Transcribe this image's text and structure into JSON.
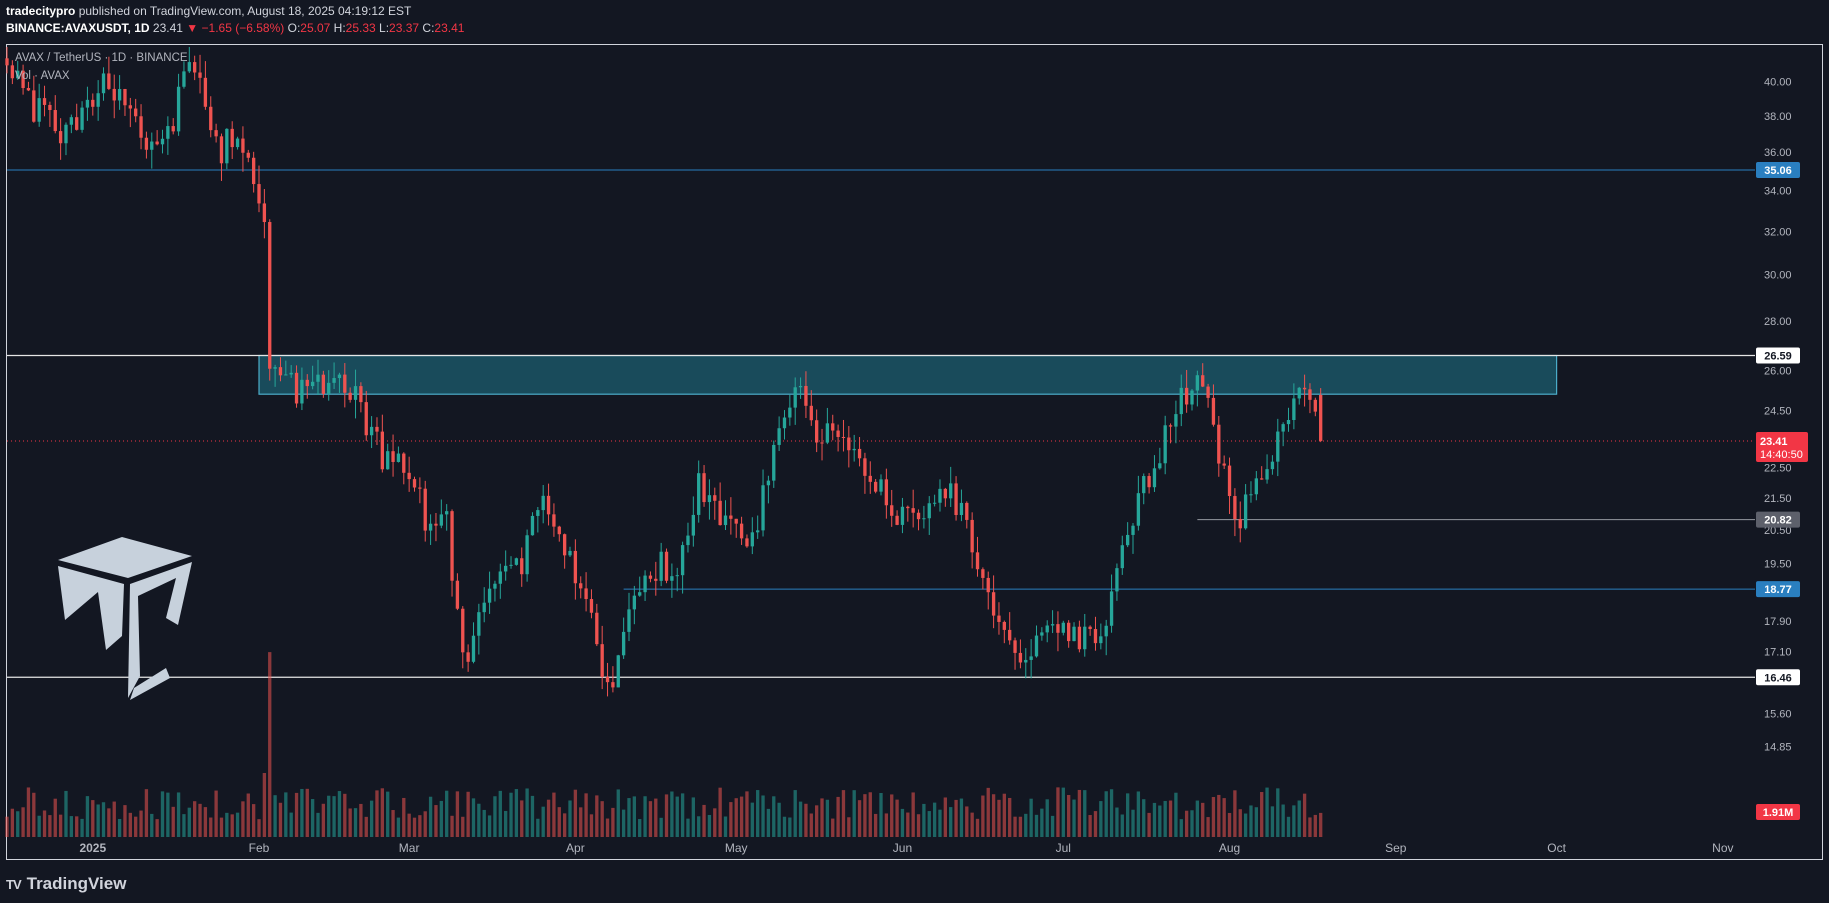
{
  "header": {
    "author": "tradecitypro",
    "published_text": "published on TradingView.com, August 18, 2025 04:19:12 EST",
    "symbol": "BINANCE:AVAXUSDT, 1D",
    "last": "23.41",
    "change": "−1.65 (−6.58%)",
    "o_label": "O:",
    "o_val": "25.07",
    "h_label": "H:",
    "h_val": "25.33",
    "l_label": "L:",
    "l_val": "23.37",
    "c_label": "C:",
    "c_val": "23.41"
  },
  "legend": {
    "series_title": "AVAX / TetherUS · 1D · BINANCE",
    "volume_title": "Vol · AVAX"
  },
  "footer": {
    "brand": "TradingView",
    "logo_mark": "TV"
  },
  "colors": {
    "background": "#131722",
    "bull": "#26a69a",
    "bear": "#ef5350",
    "level_line": "#2a7fc0",
    "zone_fill": "#1a4e5f",
    "zone_stroke": "#4fb6d3",
    "current_price": "#f23645"
  },
  "chart_data": {
    "type": "candlestick",
    "symbol": "AVAX / TetherUS",
    "timeframe": "1D",
    "exchange": "BINANCE",
    "y_scale": "log",
    "ylim": [
      14.55,
      41.0
    ],
    "y_ticks": [
      40.0,
      38.0,
      36.0,
      34.0,
      32.0,
      30.0,
      28.0,
      26.0,
      24.5,
      22.5,
      21.5,
      20.5,
      19.5,
      17.9,
      17.1,
      15.6,
      14.85
    ],
    "y_tick_labels": [
      "40.00",
      "38.00",
      "36.00",
      "34.00",
      "32.00",
      "30.00",
      "28.00",
      "26.00",
      "24.50",
      "22.50",
      "21.50",
      "20.50",
      "19.50",
      "17.90",
      "17.10",
      "15.60",
      "14.85"
    ],
    "x_ticks": [
      {
        "label": "2025",
        "date": "2025-01-01"
      },
      {
        "label": "Feb",
        "date": "2025-02-01"
      },
      {
        "label": "Mar",
        "date": "2025-03-01"
      },
      {
        "label": "Apr",
        "date": "2025-04-01"
      },
      {
        "label": "May",
        "date": "2025-05-01"
      },
      {
        "label": "Jun",
        "date": "2025-06-01"
      },
      {
        "label": "Jul",
        "date": "2025-07-01"
      },
      {
        "label": "Aug",
        "date": "2025-08-01"
      },
      {
        "label": "Sep",
        "date": "2025-09-01"
      },
      {
        "label": "Oct",
        "date": "2025-10-01"
      },
      {
        "label": "Nov",
        "date": "2025-11-01"
      }
    ],
    "xlim": [
      "2024-12-16",
      "2025-11-07"
    ],
    "anchors": [
      {
        "date": "2024-12-16",
        "price": 41.0
      },
      {
        "date": "2024-12-21",
        "price": 38.5
      },
      {
        "date": "2024-12-26",
        "price": 37.0
      },
      {
        "date": "2024-12-30",
        "price": 38.5
      },
      {
        "date": "2025-01-03",
        "price": 40.5
      },
      {
        "date": "2025-01-07",
        "price": 38.0
      },
      {
        "date": "2025-01-12",
        "price": 36.5
      },
      {
        "date": "2025-01-16",
        "price": 38.0
      },
      {
        "date": "2025-01-20",
        "price": 41.5
      },
      {
        "date": "2025-01-24",
        "price": 36.0
      },
      {
        "date": "2025-01-28",
        "price": 36.8
      },
      {
        "date": "2025-02-02",
        "price": 32.5
      },
      {
        "date": "2025-02-03",
        "price": 26.2
      },
      {
        "date": "2025-02-08",
        "price": 25.2
      },
      {
        "date": "2025-02-14",
        "price": 25.8
      },
      {
        "date": "2025-02-19",
        "price": 25.0
      },
      {
        "date": "2025-02-24",
        "price": 23.0
      },
      {
        "date": "2025-02-28",
        "price": 22.8
      },
      {
        "date": "2025-03-04",
        "price": 21.0
      },
      {
        "date": "2025-03-08",
        "price": 20.8
      },
      {
        "date": "2025-03-11",
        "price": 16.8
      },
      {
        "date": "2025-03-16",
        "price": 18.8
      },
      {
        "date": "2025-03-21",
        "price": 19.2
      },
      {
        "date": "2025-03-26",
        "price": 21.5
      },
      {
        "date": "2025-03-29",
        "price": 20.0
      },
      {
        "date": "2025-04-02",
        "price": 19.0
      },
      {
        "date": "2025-04-07",
        "price": 16.0
      },
      {
        "date": "2025-04-10",
        "price": 17.7
      },
      {
        "date": "2025-04-14",
        "price": 19.6
      },
      {
        "date": "2025-04-20",
        "price": 19.2
      },
      {
        "date": "2025-04-24",
        "price": 21.8
      },
      {
        "date": "2025-04-30",
        "price": 20.8
      },
      {
        "date": "2025-05-04",
        "price": 20.0
      },
      {
        "date": "2025-05-08",
        "price": 23.0
      },
      {
        "date": "2025-05-12",
        "price": 25.5
      },
      {
        "date": "2025-05-16",
        "price": 23.5
      },
      {
        "date": "2025-05-21",
        "price": 23.8
      },
      {
        "date": "2025-05-24",
        "price": 23.2
      },
      {
        "date": "2025-05-27",
        "price": 22.0
      },
      {
        "date": "2025-06-01",
        "price": 20.8
      },
      {
        "date": "2025-06-06",
        "price": 21.4
      },
      {
        "date": "2025-06-10",
        "price": 22.0
      },
      {
        "date": "2025-06-14",
        "price": 19.8
      },
      {
        "date": "2025-06-18",
        "price": 18.0
      },
      {
        "date": "2025-06-22",
        "price": 16.8
      },
      {
        "date": "2025-06-26",
        "price": 17.6
      },
      {
        "date": "2025-06-30",
        "price": 17.6
      },
      {
        "date": "2025-07-04",
        "price": 17.4
      },
      {
        "date": "2025-07-09",
        "price": 18.0
      },
      {
        "date": "2025-07-13",
        "price": 20.5
      },
      {
        "date": "2025-07-18",
        "price": 22.5
      },
      {
        "date": "2025-07-22",
        "price": 24.8
      },
      {
        "date": "2025-07-26",
        "price": 25.5
      },
      {
        "date": "2025-07-28",
        "price": 24.8
      },
      {
        "date": "2025-08-01",
        "price": 21.5
      },
      {
        "date": "2025-08-03",
        "price": 20.9
      },
      {
        "date": "2025-08-07",
        "price": 22.5
      },
      {
        "date": "2025-08-11",
        "price": 24.0
      },
      {
        "date": "2025-08-14",
        "price": 25.4
      },
      {
        "date": "2025-08-16",
        "price": 24.8
      },
      {
        "date": "2025-08-17",
        "price": 25.07
      },
      {
        "date": "2025-08-18",
        "price": 23.41
      }
    ],
    "last_candle": {
      "open": 25.07,
      "high": 25.33,
      "low": 23.37,
      "close": 23.41
    },
    "levels": [
      {
        "price": 35.06,
        "label": "35.06",
        "type": "support-resistance",
        "start": "2024-12-16"
      },
      {
        "price": 26.59,
        "label": "26.59",
        "type": "key-level",
        "start": "2024-12-16"
      },
      {
        "price": 20.82,
        "label": "20.82",
        "type": "short-level",
        "start": "2025-07-26"
      },
      {
        "price": 18.77,
        "label": "18.77",
        "type": "support-resistance",
        "start": "2025-04-10"
      },
      {
        "price": 16.46,
        "label": "16.46",
        "type": "key-level",
        "start": "2024-12-16"
      }
    ],
    "zone": {
      "top": 26.59,
      "bottom": 25.1,
      "start": "2025-02-01",
      "end": "2025-10-01"
    },
    "current_price": {
      "value": "23.41",
      "countdown": "14:40:50"
    },
    "volume": {
      "last_label": "1.91M"
    }
  }
}
